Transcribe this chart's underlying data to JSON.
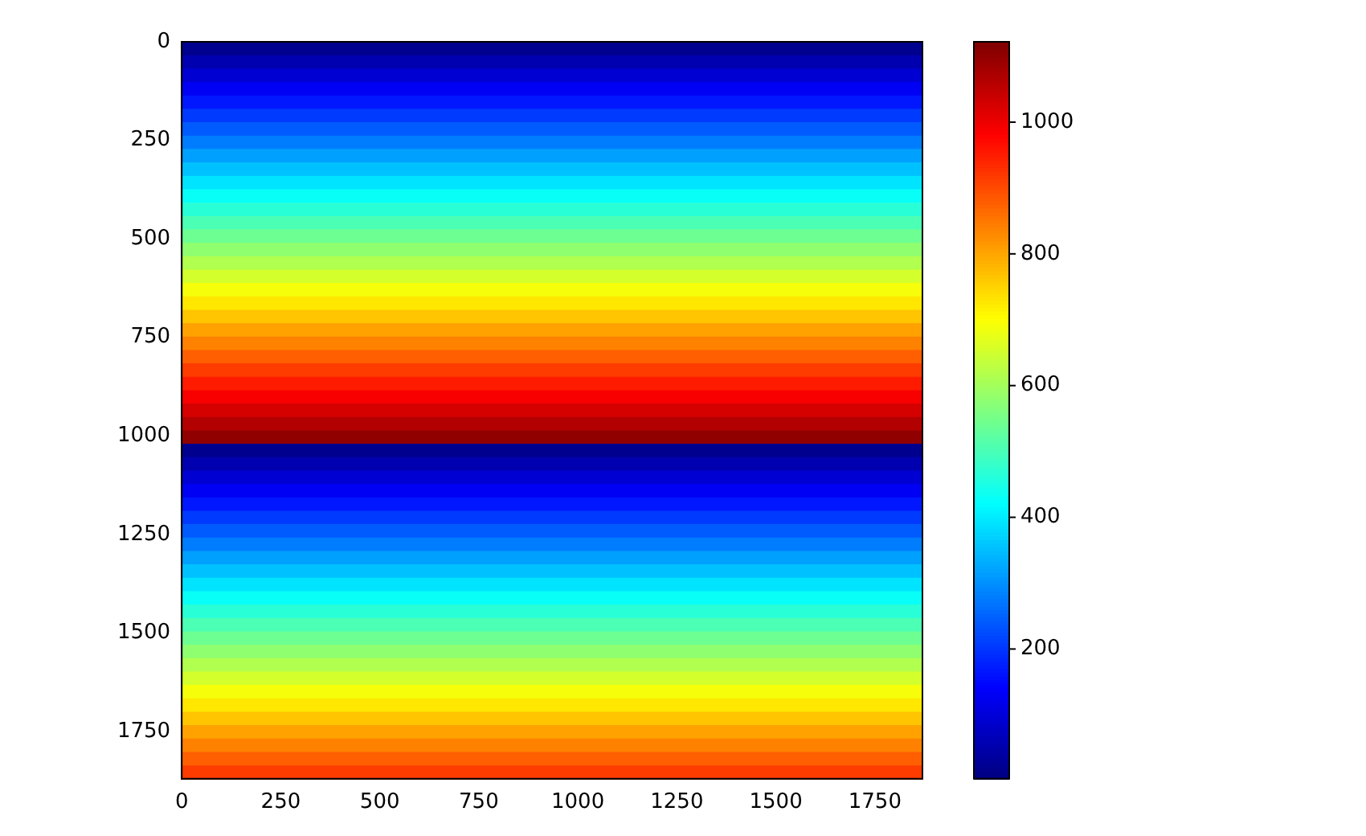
{
  "chart_data": {
    "type": "heatmap",
    "xlim": [
      0,
      1870
    ],
    "xticks": [
      0,
      250,
      500,
      750,
      1000,
      1250,
      1500,
      1750
    ],
    "ylim": [
      1870,
      0
    ],
    "yticks": [
      0,
      250,
      500,
      750,
      1000,
      1250,
      1500,
      1750
    ],
    "clim": [
      3,
      1122
    ],
    "cticks": [
      200,
      400,
      600,
      800,
      1000
    ],
    "cells": [
      [
        19
      ],
      [
        56
      ],
      [
        94
      ],
      [
        131
      ],
      [
        168
      ],
      [
        206
      ],
      [
        243
      ],
      [
        280
      ],
      [
        318
      ],
      [
        355
      ],
      [
        393
      ],
      [
        430
      ],
      [
        467
      ],
      [
        505
      ],
      [
        542
      ],
      [
        579
      ],
      [
        617
      ],
      [
        654
      ],
      [
        692
      ],
      [
        729
      ],
      [
        766
      ],
      [
        804
      ],
      [
        841
      ],
      [
        878
      ],
      [
        916
      ],
      [
        953
      ],
      [
        990
      ],
      [
        1028
      ],
      [
        1065
      ],
      [
        1103
      ],
      [
        19
      ],
      [
        56
      ],
      [
        94
      ],
      [
        131
      ],
      [
        168
      ],
      [
        206
      ],
      [
        243
      ],
      [
        280
      ],
      [
        318
      ],
      [
        355
      ],
      [
        393
      ],
      [
        430
      ],
      [
        467
      ],
      [
        505
      ],
      [
        542
      ],
      [
        579
      ],
      [
        617
      ],
      [
        654
      ],
      [
        692
      ],
      [
        729
      ],
      [
        766
      ],
      [
        804
      ],
      [
        841
      ],
      [
        878
      ],
      [
        916
      ]
    ]
  }
}
